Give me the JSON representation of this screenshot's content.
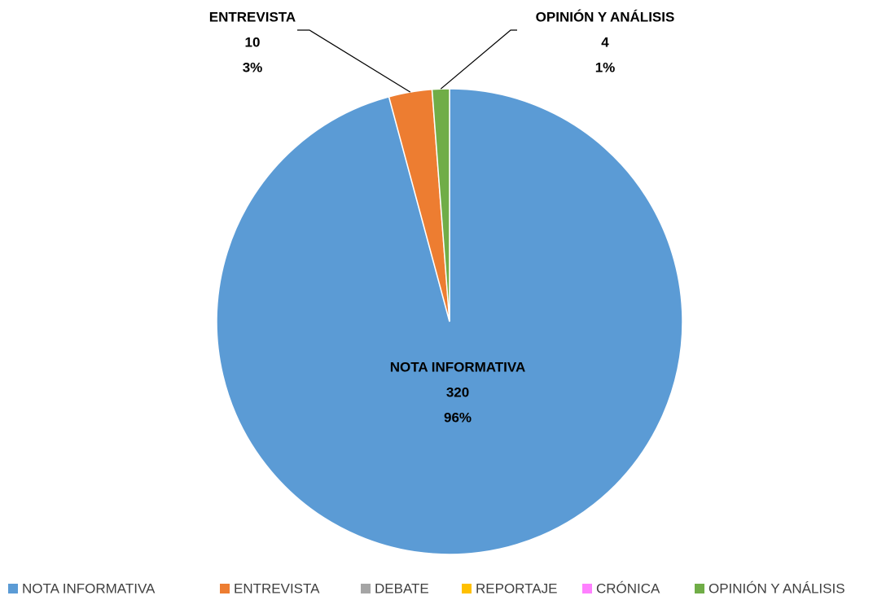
{
  "chart_data": {
    "type": "pie",
    "categories": [
      "NOTA INFORMATIVA",
      "ENTREVISTA",
      "DEBATE",
      "REPORTAJE",
      "CRÓNICA",
      "OPINIÓN Y ANÁLISIS"
    ],
    "values": [
      320,
      10,
      0,
      0,
      0,
      4
    ],
    "percent_labels": [
      "96%",
      "3%",
      null,
      null,
      null,
      "1%"
    ],
    "colors": [
      "#5b9bd5",
      "#ed7d31",
      "#a5a5a5",
      "#ffc000",
      "#ff80ff",
      "#70ad47"
    ],
    "legend": "bottom"
  }
}
